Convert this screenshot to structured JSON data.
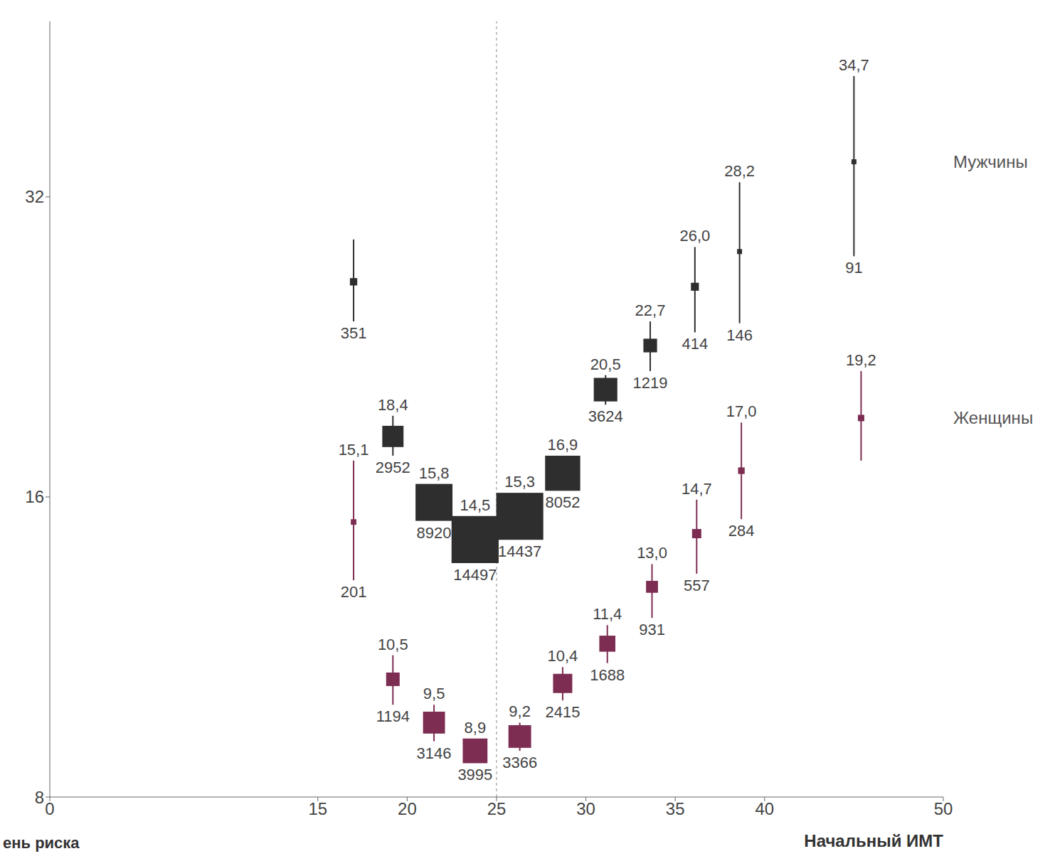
{
  "chart_data": {
    "type": "scatter",
    "x_label": "Начальный ИМТ",
    "y_label": "ень риска",
    "xlim": [
      0,
      50
    ],
    "xticks": [
      0,
      15,
      20,
      25,
      30,
      35,
      40,
      50
    ],
    "ylim": [
      8,
      48
    ],
    "yticks": [
      8,
      16,
      32
    ],
    "log": "y",
    "grid": false,
    "legend": "right",
    "vline": 25,
    "series": [
      {
        "name": "Мужчины",
        "color": "#2e2e2e",
        "marker": "square",
        "x": [
          17,
          19.2,
          21.5,
          23.8,
          26.3,
          28.7,
          31.1,
          33.6,
          36.1,
          38.6,
          45
        ],
        "values": [
          26.3,
          18.4,
          15.8,
          14.5,
          15.3,
          16.9,
          20.5,
          22.7,
          26.0,
          28.2,
          34.7
        ],
        "value_labels": [
          null,
          "18,4",
          "15,8",
          "14,5",
          "15,3",
          "16,9",
          "20,5",
          "22,7",
          "26,0",
          "28,2",
          "34,7"
        ],
        "ci_low": [
          24.0,
          17.6,
          15.4,
          14.2,
          15.0,
          16.4,
          19.8,
          21.4,
          23.4,
          23.9,
          27.9
        ],
        "ci_high": [
          29.0,
          19.3,
          16.2,
          14.8,
          15.6,
          17.4,
          21.2,
          24.0,
          28.5,
          33.1,
          42.3
        ],
        "counts": [
          351,
          2952,
          8920,
          14497,
          14437,
          8052,
          3624,
          1219,
          414,
          146,
          91
        ]
      },
      {
        "name": "Женщины",
        "color": "#7d2d52",
        "marker": "square",
        "x": [
          17,
          19.2,
          21.5,
          23.8,
          26.3,
          28.7,
          31.2,
          33.7,
          36.2,
          38.7,
          45.4
        ],
        "values": [
          15.1,
          10.5,
          9.5,
          8.9,
          9.2,
          10.4,
          11.4,
          13.0,
          14.7,
          17.0,
          19.2
        ],
        "value_labels": [
          "15,1",
          "10,5",
          "9,5",
          "8,9",
          "9,2",
          "10,4",
          "11,4",
          "13,0",
          "14,7",
          "17,0",
          "19,2"
        ],
        "ci_low": [
          13.2,
          9.9,
          9.1,
          8.7,
          8.9,
          10.0,
          10.9,
          12.1,
          13.4,
          15.2,
          17.4
        ],
        "ci_high": [
          17.4,
          11.1,
          9.9,
          9.1,
          9.5,
          10.8,
          11.9,
          13.7,
          15.9,
          19.0,
          21.4
        ],
        "counts": [
          201,
          1194,
          3146,
          3995,
          3366,
          2415,
          1688,
          931,
          557,
          284,
          null
        ]
      }
    ]
  }
}
